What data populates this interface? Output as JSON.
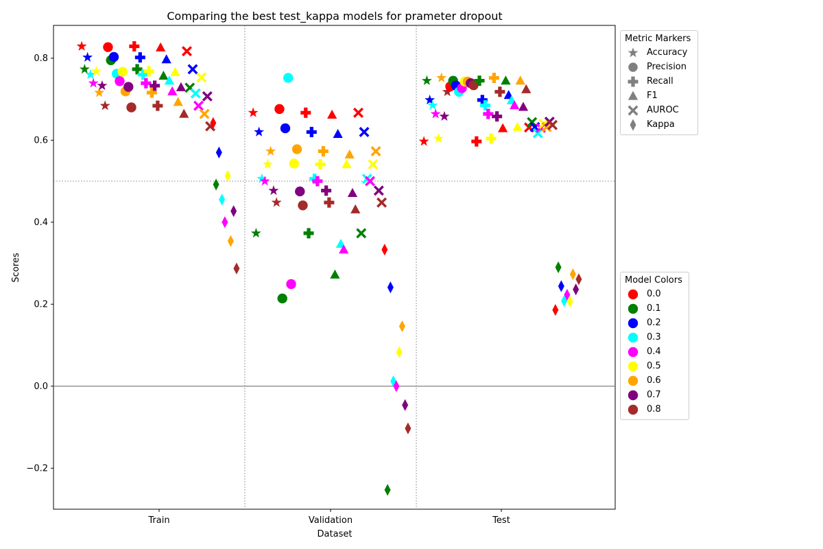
{
  "chart_data": {
    "type": "scatter",
    "title": "Comparing the best test_kappa models for prameter dropout",
    "xlabel": "Dataset",
    "ylabel": "Scores",
    "categories": [
      "Train",
      "Validation",
      "Test"
    ],
    "ylim": [
      -0.3,
      0.88
    ],
    "yticks": [
      -0.2,
      0.0,
      0.2,
      0.4,
      0.6,
      0.8
    ],
    "ytick_labels": [
      "−0.2",
      "0.0",
      "0.2",
      "0.4",
      "0.6",
      "0.8"
    ],
    "reference_lines": {
      "horizontal": [
        0.5,
        0.0
      ],
      "vertical_separators": true
    },
    "metric_legend_title": "Metric Markers",
    "metrics": [
      {
        "name": "Accuracy",
        "marker": "star"
      },
      {
        "name": "Precision",
        "marker": "circle"
      },
      {
        "name": "Recall",
        "marker": "plus"
      },
      {
        "name": "F1",
        "marker": "triangle"
      },
      {
        "name": "AUROC",
        "marker": "x"
      },
      {
        "name": "Kappa",
        "marker": "diamond"
      }
    ],
    "model_legend_title": "Model Colors",
    "models": [
      {
        "name": "0.0",
        "color": "#ff0000"
      },
      {
        "name": "0.1",
        "color": "#008000"
      },
      {
        "name": "0.2",
        "color": "#0000ff"
      },
      {
        "name": "0.3",
        "color": "#00ffff"
      },
      {
        "name": "0.4",
        "color": "#ff00ff"
      },
      {
        "name": "0.5",
        "color": "#ffff00"
      },
      {
        "name": "0.6",
        "color": "#ffa500"
      },
      {
        "name": "0.7",
        "color": "#800080"
      },
      {
        "name": "0.8",
        "color": "#a52a2a"
      }
    ],
    "values": {
      "Train": {
        "Accuracy": [
          0.829,
          0.773,
          0.802,
          0.76,
          0.739,
          0.768,
          0.716,
          0.733,
          0.684
        ],
        "Precision": [
          0.827,
          0.795,
          0.803,
          0.762,
          0.744,
          0.767,
          0.719,
          0.73,
          0.68
        ],
        "Recall": [
          0.829,
          0.773,
          0.802,
          0.76,
          0.739,
          0.768,
          0.716,
          0.733,
          0.684
        ],
        "F1": [
          0.826,
          0.757,
          0.797,
          0.745,
          0.719,
          0.766,
          0.693,
          0.729,
          0.664
        ],
        "AUROC": [
          0.817,
          0.728,
          0.773,
          0.714,
          0.684,
          0.753,
          0.664,
          0.707,
          0.634
        ],
        "Kappa": [
          0.642,
          0.492,
          0.57,
          0.455,
          0.4,
          0.513,
          0.354,
          0.427,
          0.287
        ]
      },
      "Validation": {
        "Accuracy": [
          0.667,
          0.373,
          0.62,
          0.506,
          0.5,
          0.541,
          0.573,
          0.477,
          0.448
        ],
        "Precision": [
          0.676,
          0.214,
          0.629,
          0.752,
          0.249,
          0.543,
          0.578,
          0.475,
          0.441
        ],
        "Recall": [
          0.667,
          0.373,
          0.62,
          0.506,
          0.5,
          0.541,
          0.573,
          0.477,
          0.448
        ],
        "F1": [
          0.662,
          0.272,
          0.615,
          0.347,
          0.333,
          0.541,
          0.565,
          0.471,
          0.431
        ],
        "AUROC": [
          0.667,
          0.373,
          0.62,
          0.506,
          0.5,
          0.541,
          0.573,
          0.477,
          0.448
        ],
        "Kappa": [
          0.333,
          -0.253,
          0.241,
          0.012,
          0.0,
          0.083,
          0.146,
          -0.046,
          -0.103
        ]
      },
      "Test": {
        "Accuracy": [
          0.597,
          0.745,
          0.698,
          0.685,
          0.664,
          0.604,
          0.752,
          0.658,
          0.718
        ],
        "Precision": [
          0.731,
          0.745,
          0.733,
          0.718,
          0.727,
          0.743,
          0.743,
          0.739,
          0.734
        ],
        "Recall": [
          0.597,
          0.745,
          0.698,
          0.685,
          0.664,
          0.604,
          0.752,
          0.658,
          0.718
        ],
        "F1": [
          0.629,
          0.745,
          0.71,
          0.697,
          0.685,
          0.632,
          0.745,
          0.681,
          0.724
        ],
        "AUROC": [
          0.631,
          0.644,
          0.632,
          0.617,
          0.63,
          0.64,
          0.632,
          0.645,
          0.637
        ],
        "Kappa": [
          0.186,
          0.29,
          0.244,
          0.208,
          0.223,
          0.206,
          0.273,
          0.236,
          0.261
        ]
      }
    }
  }
}
